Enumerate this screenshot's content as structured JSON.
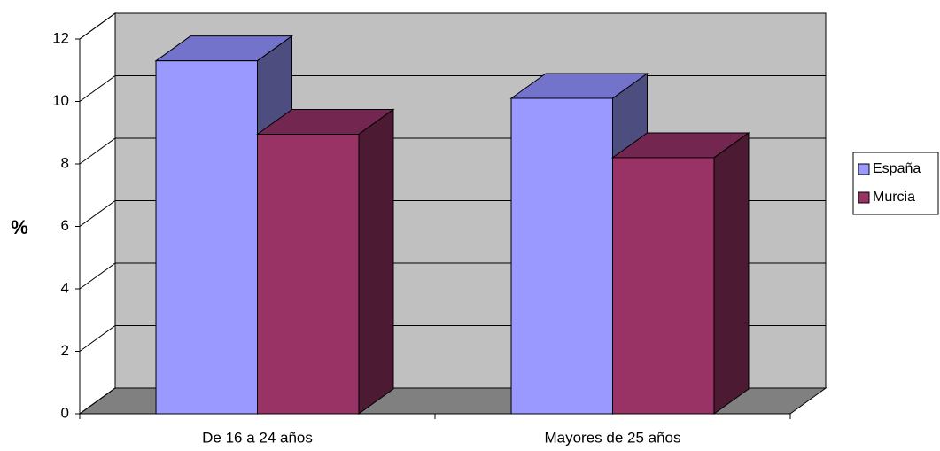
{
  "chart_data": {
    "type": "bar3d",
    "y_label": "%",
    "categories": [
      "De 16 a 24 años",
      "Mayores de 25 años"
    ],
    "series": [
      {
        "name": "España",
        "color": "#9999ff",
        "top": "#7373cc",
        "side": "#4d4d80",
        "values": [
          11.3,
          10.1
        ]
      },
      {
        "name": "Murcia",
        "color": "#993366",
        "top": "#732650",
        "side": "#4d1a33",
        "values": [
          8.95,
          8.2
        ]
      }
    ],
    "ylim": [
      0,
      12
    ],
    "yticks": [
      0,
      2,
      4,
      6,
      8,
      10,
      12
    ],
    "grid": true,
    "legend": "right"
  }
}
